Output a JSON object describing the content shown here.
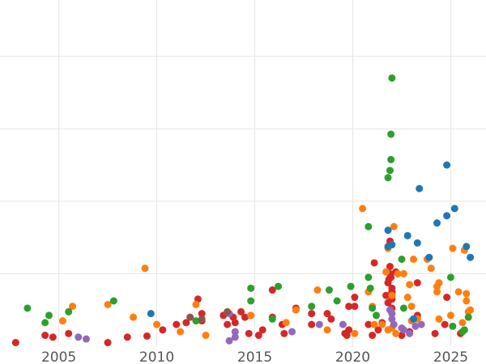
{
  "chart_data": {
    "type": "scatter",
    "title": "",
    "xlabel": "",
    "ylabel": "",
    "xlim": [
      2002.0,
      2026.8
    ],
    "ylim": [
      0,
      100
    ],
    "grid": true,
    "legend": "none",
    "x_ticks": [
      2005,
      2010,
      2015,
      2020,
      2025
    ],
    "x_tick_labels": [
      "2005",
      "2010",
      "2015",
      "2020",
      "2025"
    ],
    "y_gridlines": [
      20,
      40,
      60,
      80,
      100
    ],
    "series": [
      {
        "color": "#d62728",
        "points": [
          [
            2002.8,
            1
          ],
          [
            2004.3,
            3
          ],
          [
            2004.7,
            2.5
          ],
          [
            2005.5,
            3.5
          ],
          [
            2007.5,
            1
          ],
          [
            2008.5,
            2.5
          ],
          [
            2009.5,
            2.8
          ],
          [
            2010.3,
            4.5
          ],
          [
            2011.0,
            6
          ],
          [
            2011.5,
            6.5
          ],
          [
            2012.1,
            13
          ],
          [
            2012.3,
            9
          ],
          [
            2012.3,
            7
          ],
          [
            2013.4,
            8.5
          ],
          [
            2013.6,
            6
          ],
          [
            2013.9,
            8
          ],
          [
            2014.0,
            6.5
          ],
          [
            2014.3,
            9.5
          ],
          [
            2014.5,
            8
          ],
          [
            2014.7,
            3.5
          ],
          [
            2014.8,
            8.5
          ],
          [
            2015.2,
            3
          ],
          [
            2015.4,
            4.5
          ],
          [
            2015.9,
            8
          ],
          [
            2015.9,
            15.5
          ],
          [
            2016.4,
            6
          ],
          [
            2016.5,
            3.5
          ],
          [
            2017.1,
            10.5
          ],
          [
            2017.9,
            6
          ],
          [
            2017.9,
            9
          ],
          [
            2018.7,
            9
          ],
          [
            2018.9,
            7.5
          ],
          [
            2019.7,
            3
          ],
          [
            2019.8,
            4.5
          ],
          [
            2019.8,
            11
          ],
          [
            2020.1,
            11
          ],
          [
            2020.1,
            13.5
          ],
          [
            2019.6,
            3.5
          ],
          [
            2020.8,
            6
          ],
          [
            2021.0,
            3
          ],
          [
            2021.1,
            23
          ],
          [
            2021.3,
            4.5
          ],
          [
            2021.5,
            6.5
          ],
          [
            2021.7,
            14
          ],
          [
            2021.8,
            17.5
          ],
          [
            2021.8,
            12
          ],
          [
            2021.9,
            20
          ],
          [
            2021.9,
            22
          ],
          [
            2021.9,
            29
          ],
          [
            2022.0,
            16
          ],
          [
            2022.0,
            15
          ],
          [
            2022.0,
            14.5
          ],
          [
            2022.0,
            13
          ],
          [
            2022.2,
            20.5
          ],
          [
            2022.5,
            3
          ],
          [
            2022.9,
            4
          ],
          [
            2023.3,
            8.5
          ],
          [
            2023.3,
            17.5
          ],
          [
            2024.2,
            3.5
          ],
          [
            2024.7,
            6
          ],
          [
            2024.8,
            13.5
          ],
          [
            2025.5,
            3.5
          ],
          [
            2021.85,
            18.5
          ],
          [
            2021.95,
            19
          ],
          [
            2022.0,
            10.5
          ]
        ]
      },
      {
        "color": "#ff7f0e",
        "points": [
          [
            2005.2,
            7
          ],
          [
            2005.7,
            11
          ],
          [
            2007.5,
            11.5
          ],
          [
            2008.8,
            8
          ],
          [
            2009.4,
            21.5
          ],
          [
            2010.0,
            6
          ],
          [
            2011.2,
            4
          ],
          [
            2012.0,
            11.5
          ],
          [
            2012.5,
            3
          ],
          [
            2014.8,
            8.5
          ],
          [
            2016.6,
            6.5
          ],
          [
            2017.1,
            10
          ],
          [
            2018.2,
            15.5
          ],
          [
            2018.7,
            4.5
          ],
          [
            2020.1,
            3.5
          ],
          [
            2020.5,
            38
          ],
          [
            2020.8,
            15
          ],
          [
            2021.0,
            11
          ],
          [
            2021.1,
            6
          ],
          [
            2021.5,
            6
          ],
          [
            2021.7,
            20.5
          ],
          [
            2021.8,
            4.5
          ],
          [
            2021.8,
            27
          ],
          [
            2022.0,
            5
          ],
          [
            2022.0,
            14
          ],
          [
            2022.1,
            33
          ],
          [
            2022.2,
            3.5
          ],
          [
            2022.6,
            20
          ],
          [
            2022.8,
            13.5
          ],
          [
            2022.9,
            17
          ],
          [
            2023.0,
            11
          ],
          [
            2023.0,
            7
          ],
          [
            2023.1,
            24
          ],
          [
            2023.3,
            7.5
          ],
          [
            2023.8,
            24
          ],
          [
            2024.0,
            21.5
          ],
          [
            2024.3,
            15
          ],
          [
            2024.3,
            16.5
          ],
          [
            2024.4,
            17.5
          ],
          [
            2024.4,
            7.5
          ],
          [
            2025.0,
            8.5
          ],
          [
            2025.1,
            27
          ],
          [
            2025.4,
            15
          ],
          [
            2025.6,
            6.5
          ],
          [
            2025.7,
            26.5
          ],
          [
            2025.8,
            14.5
          ],
          [
            2025.9,
            9.5
          ],
          [
            2026.0,
            10
          ],
          [
            2025.8,
            12.5
          ],
          [
            2022.3,
            20
          ]
        ]
      },
      {
        "color": "#2ca02c",
        "points": [
          [
            2003.4,
            10.5
          ],
          [
            2004.3,
            6.5
          ],
          [
            2004.5,
            8.5
          ],
          [
            2005.5,
            9.5
          ],
          [
            2007.8,
            12.5
          ],
          [
            2012.0,
            7
          ],
          [
            2014.8,
            12.5
          ],
          [
            2014.8,
            16
          ],
          [
            2015.9,
            7.5
          ],
          [
            2016.2,
            16.5
          ],
          [
            2017.9,
            11
          ],
          [
            2018.8,
            15.5
          ],
          [
            2019.2,
            12.5
          ],
          [
            2019.9,
            16.5
          ],
          [
            2020.8,
            33
          ],
          [
            2020.8,
            19
          ],
          [
            2020.9,
            16
          ],
          [
            2021.0,
            10.5
          ],
          [
            2021.2,
            8.5
          ],
          [
            2021.8,
            46.5
          ],
          [
            2021.9,
            48.5
          ],
          [
            2021.95,
            51.5
          ],
          [
            2021.95,
            58.5
          ],
          [
            2022.0,
            74
          ],
          [
            2022.5,
            24
          ],
          [
            2022.6,
            10.5
          ],
          [
            2025.0,
            19
          ],
          [
            2025.1,
            5.5
          ],
          [
            2025.6,
            4
          ],
          [
            2025.7,
            4.5
          ],
          [
            2025.9,
            8
          ]
        ]
      },
      {
        "color": "#1f77b4",
        "points": [
          [
            2009.7,
            9
          ],
          [
            2021.8,
            32
          ],
          [
            2021.8,
            27.5
          ],
          [
            2022.0,
            28
          ],
          [
            2022.8,
            30.5
          ],
          [
            2023.1,
            7.5
          ],
          [
            2023.3,
            28.5
          ],
          [
            2023.4,
            43.5
          ],
          [
            2023.9,
            24.5
          ],
          [
            2024.3,
            34
          ],
          [
            2024.8,
            50
          ],
          [
            2024.8,
            36
          ],
          [
            2025.2,
            38
          ],
          [
            2025.8,
            27.5
          ],
          [
            2026.0,
            24.5
          ]
        ]
      },
      {
        "color": "#9467bd",
        "points": [
          [
            2006.0,
            2.5
          ],
          [
            2006.4,
            2
          ],
          [
            2013.7,
            1.5
          ],
          [
            2013.7,
            9
          ],
          [
            2014.0,
            4
          ],
          [
            2014.0,
            2.5
          ],
          [
            2016.9,
            4
          ],
          [
            2018.3,
            6
          ],
          [
            2019.5,
            6
          ],
          [
            2021.9,
            10
          ],
          [
            2022.0,
            9
          ],
          [
            2022.0,
            7.5
          ],
          [
            2022.1,
            6
          ],
          [
            2022.5,
            5
          ],
          [
            2022.6,
            4.5
          ],
          [
            2022.9,
            3.5
          ],
          [
            2023.2,
            5.5
          ],
          [
            2023.5,
            6
          ]
        ]
      },
      {
        "color": "#8c564b",
        "points": [
          [
            2011.7,
            8
          ],
          [
            2012.3,
            7.5
          ],
          [
            2013.6,
            9.5
          ]
        ]
      }
    ]
  }
}
